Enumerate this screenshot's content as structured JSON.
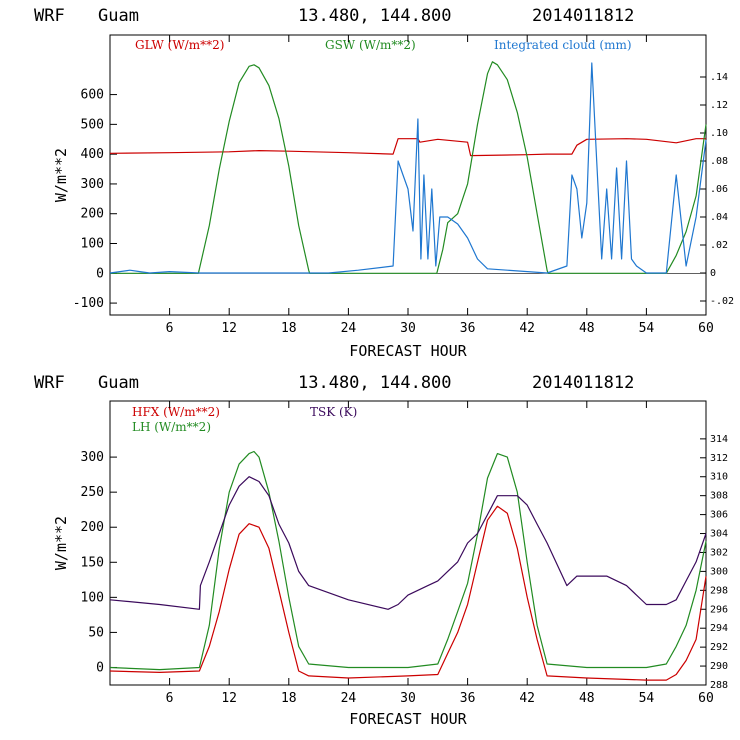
{
  "chart_data": [
    {
      "type": "line",
      "header": {
        "model": "WRF",
        "location": "Guam",
        "coords": "13.480, 144.800",
        "init": "2014011812"
      },
      "xlabel": "FORECAST HOUR",
      "ylabel": "W/m**2",
      "xlim": [
        0,
        60
      ],
      "xticks": [
        6,
        12,
        18,
        24,
        30,
        36,
        42,
        48,
        54,
        60
      ],
      "ylim": [
        -140,
        800
      ],
      "yticks": [
        -100,
        0,
        100,
        200,
        300,
        400,
        500,
        600
      ],
      "ylim_right": [
        -0.03,
        0.17
      ],
      "yticks_right": [
        -0.02,
        0,
        0.02,
        0.04,
        0.06,
        0.08,
        0.1,
        0.12,
        0.14
      ],
      "ytick_labels_right": [
        "-.02",
        "0",
        ".02",
        ".04",
        ".06",
        ".08",
        ".10",
        ".12",
        ".14"
      ],
      "series": [
        {
          "name": "GLW (W/m**2)",
          "axis": "left",
          "color": "#cc0000",
          "x": [
            0,
            6,
            12,
            15,
            18,
            24,
            28.5,
            29,
            31,
            31.2,
            33,
            36,
            36.3,
            42,
            44,
            46.5,
            47,
            48,
            52,
            54,
            57,
            59,
            60
          ],
          "y": [
            403,
            405,
            408,
            412,
            410,
            405,
            400,
            452,
            452,
            440,
            450,
            440,
            395,
            398,
            400,
            400,
            430,
            450,
            452,
            450,
            438,
            452,
            452
          ]
        },
        {
          "name": "GSW (W/m**2)",
          "axis": "left",
          "color": "#228b22",
          "x": [
            0,
            8.9,
            10,
            11,
            12,
            13,
            14,
            14.5,
            15,
            16,
            17,
            18,
            19,
            20,
            20.1,
            32.9,
            33.5,
            34,
            35,
            36,
            37,
            38,
            38.5,
            39,
            40,
            41,
            42,
            43,
            44,
            44.1,
            56,
            57,
            58,
            59,
            60
          ],
          "y": [
            0,
            0,
            160,
            350,
            510,
            640,
            695,
            700,
            690,
            630,
            520,
            360,
            160,
            10,
            0,
            0,
            80,
            170,
            200,
            300,
            500,
            670,
            710,
            700,
            650,
            540,
            390,
            200,
            10,
            0,
            0,
            60,
            140,
            260,
            500
          ]
        },
        {
          "name": "Integrated cloud (mm)",
          "axis": "right",
          "color": "#1f77d0",
          "x": [
            0,
            2,
            3,
            4,
            6,
            9,
            22,
            25,
            28.5,
            29,
            29.5,
            30,
            30.5,
            31,
            31.3,
            31.6,
            32,
            32.4,
            32.8,
            33.2,
            34,
            35,
            36,
            37,
            38,
            44,
            46,
            46.5,
            47,
            47.5,
            48,
            48.5,
            49,
            49.5,
            50,
            50.5,
            51,
            51.5,
            52,
            52.5,
            53,
            54,
            56,
            57,
            58,
            59,
            60
          ],
          "y": [
            0,
            0.002,
            0.001,
            0,
            0.001,
            0,
            0,
            0.002,
            0.005,
            0.08,
            0.07,
            0.06,
            0.03,
            0.11,
            0.01,
            0.07,
            0.01,
            0.06,
            0.005,
            0.04,
            0.04,
            0.035,
            0.025,
            0.01,
            0.003,
            0,
            0.005,
            0.07,
            0.06,
            0.025,
            0.05,
            0.15,
            0.08,
            0.01,
            0.06,
            0.01,
            0.075,
            0.01,
            0.08,
            0.01,
            0.005,
            0,
            0,
            0.07,
            0.005,
            0.04,
            0.095
          ]
        }
      ]
    },
    {
      "type": "line",
      "header": {
        "model": "WRF",
        "location": "Guam",
        "coords": "13.480, 144.800",
        "init": "2014011812"
      },
      "xlabel": "FORECAST HOUR",
      "ylabel": "W/m**2",
      "xlim": [
        0,
        60
      ],
      "xticks": [
        6,
        12,
        18,
        24,
        30,
        36,
        42,
        48,
        54,
        60
      ],
      "ylim": [
        -25,
        380
      ],
      "yticks": [
        0,
        50,
        100,
        150,
        200,
        250,
        300
      ],
      "ylim_right": [
        288,
        318
      ],
      "yticks_right": [
        288,
        290,
        292,
        294,
        296,
        298,
        300,
        302,
        304,
        306,
        308,
        310,
        312,
        314
      ],
      "ytick_labels_right": [
        "288",
        "290",
        "292",
        "294",
        "296",
        "298",
        "300",
        "302",
        "304",
        "306",
        "308",
        "310",
        "312",
        "314"
      ],
      "series": [
        {
          "name": "HFX (W/m**2)",
          "axis": "left",
          "color": "#cc0000",
          "x": [
            0,
            5,
            9,
            10,
            11,
            12,
            13,
            14,
            15,
            16,
            17,
            18,
            19,
            20,
            24,
            30,
            33,
            34,
            35,
            36,
            37,
            38,
            39,
            40,
            41,
            42,
            43,
            44,
            48,
            54,
            56,
            57,
            58,
            59,
            60
          ],
          "y": [
            -5,
            -7,
            -5,
            30,
            80,
            140,
            190,
            205,
            200,
            170,
            110,
            50,
            -5,
            -12,
            -15,
            -12,
            -10,
            20,
            50,
            90,
            150,
            210,
            230,
            220,
            170,
            100,
            40,
            -12,
            -15,
            -18,
            -18,
            -10,
            10,
            40,
            130
          ]
        },
        {
          "name": "LH (W/m**2)",
          "axis": "left",
          "color": "#228b22",
          "x": [
            0,
            5,
            9,
            10,
            11,
            12,
            13,
            14,
            14.5,
            15,
            16,
            17,
            18,
            19,
            20,
            24,
            30,
            33,
            34,
            35,
            36,
            37,
            38,
            39,
            40,
            41,
            42,
            43,
            44,
            48,
            54,
            56,
            57,
            58,
            59,
            60
          ],
          "y": [
            0,
            -3,
            0,
            60,
            170,
            250,
            290,
            305,
            308,
            300,
            250,
            180,
            100,
            30,
            5,
            0,
            0,
            5,
            40,
            80,
            120,
            190,
            270,
            305,
            300,
            250,
            150,
            60,
            5,
            0,
            0,
            5,
            30,
            60,
            110,
            180
          ]
        },
        {
          "name": "TSK (K)",
          "axis": "right",
          "color": "#3b0a5c",
          "x": [
            0,
            5,
            9,
            9.1,
            10,
            11,
            12,
            13,
            14,
            15,
            16,
            17,
            18,
            19,
            20,
            24,
            28,
            29,
            30,
            32,
            33,
            34,
            35,
            36,
            37,
            38,
            39,
            40,
            41,
            42,
            43,
            44,
            46,
            47,
            50,
            52,
            54,
            56,
            57,
            58,
            59,
            60
          ],
          "y": [
            297,
            296.5,
            296,
            298.5,
            301,
            304,
            307,
            309,
            310,
            309.5,
            308,
            305,
            303,
            300,
            298.5,
            297,
            296,
            296.5,
            297.5,
            298.5,
            299,
            300,
            301,
            303,
            304,
            306,
            308,
            308,
            308,
            307,
            305,
            303,
            298.5,
            299.5,
            299.5,
            298.5,
            296.5,
            296.5,
            297,
            299,
            301,
            304
          ]
        }
      ]
    }
  ]
}
